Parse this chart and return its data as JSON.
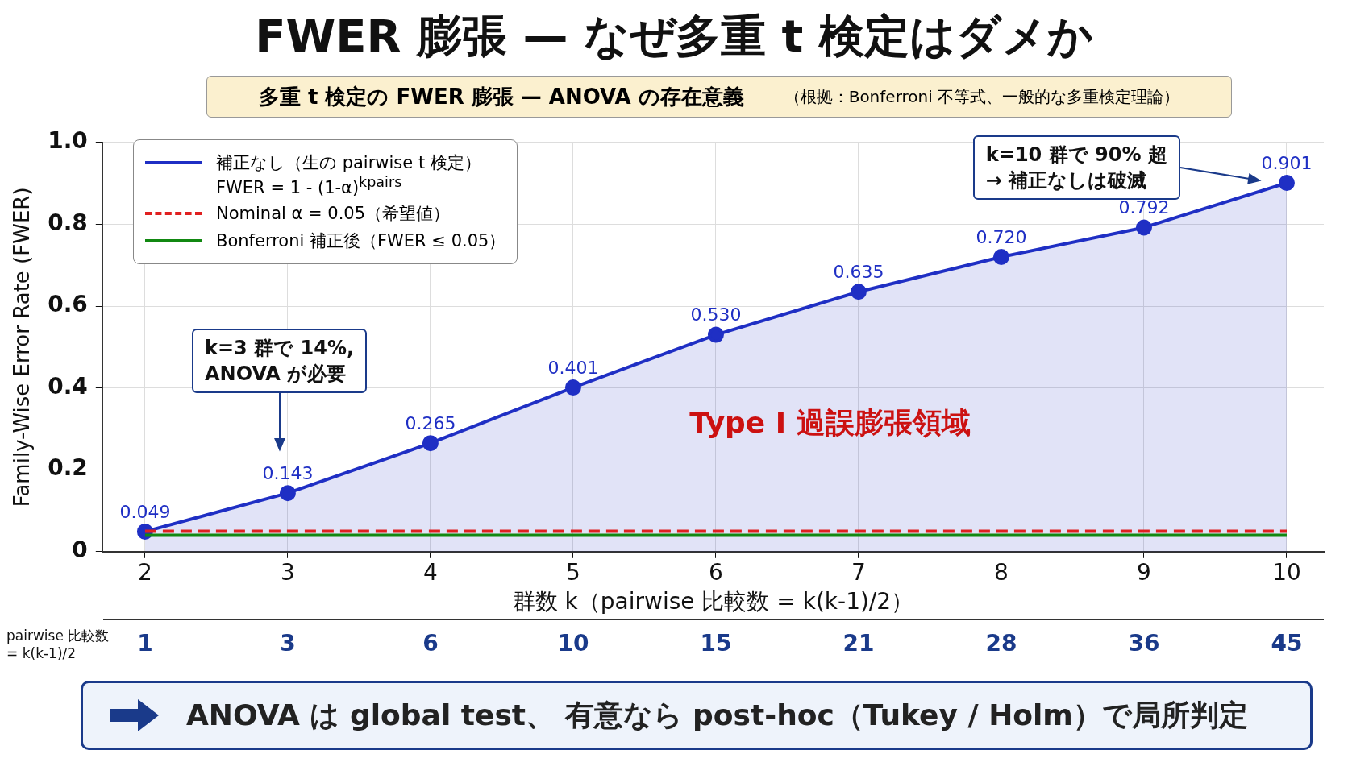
{
  "chart_data": {
    "type": "area",
    "title": "FWER 膨張 — なぜ多重 t 検定はダメか",
    "subtitle": "多重 t 検定の FWER 膨張 — ANOVA の存在意義",
    "xlabel": "群数 k（pairwise 比較数 = k(k-1)/2）",
    "ylabel": "Family-Wise Error Rate (FWER)",
    "x": [
      2,
      3,
      4,
      5,
      6,
      7,
      8,
      9,
      10
    ],
    "xlim": [
      1.7,
      10.26
    ],
    "xticks": [
      2,
      3,
      4,
      5,
      6,
      7,
      8,
      9,
      10
    ],
    "ylim": [
      0,
      1
    ],
    "yticks": [
      0,
      {
        "value": 0.2,
        "label": "0.2"
      },
      {
        "value": 0.4,
        "label": "0.4"
      },
      {
        "value": 0.6,
        "label": "0.6"
      },
      {
        "value": 0.8,
        "label": "0.8"
      },
      {
        "value": 1,
        "label": "1.0"
      }
    ],
    "series": [
      {
        "name": "補正なし（生の pairwise t 検定）\nFWER = 1 - (1-α)$^{kpairs}$",
        "color": "#1f2fc4",
        "marker": "circle",
        "values": [
          0.049,
          0.143,
          0.265,
          0.401,
          0.53,
          0.635,
          0.72,
          0.792,
          0.901
        ],
        "value_labels": [
          "0.049",
          "0.143",
          "0.265",
          "0.401",
          "0.530",
          "0.635",
          "0.720",
          "0.792",
          "0.901"
        ]
      },
      {
        "name": "Nominal α = 0.05（希望値）",
        "type": "line",
        "color": "#e02020",
        "line_style": "dashed",
        "marker": "none",
        "values": [
          0.05,
          0.05,
          0.05,
          0.05,
          0.05,
          0.05,
          0.05,
          0.05,
          0.05
        ]
      },
      {
        "name": "Bonferroni 補正後（FWER ≤ 0.05）",
        "type": "line",
        "color": "#118811",
        "line_style": "solid",
        "marker": "none",
        "values": [
          0.04,
          0.04,
          0.04,
          0.04,
          0.04,
          0.04,
          0.04,
          0.04,
          0.04
        ]
      }
    ],
    "annotations": [
      "（根拠：Bonferroni 不等式、一般的な多重検定理論）",
      "Type I 過誤膨張領域",
      "ANOVA は global test、 有意なら post-hoc（Tukey / Holm）で局所判定",
      "pairwise 比較数\n= k(k-1)/2",
      "1 3 6 10 15 21 28 36 45",
      "k=3 群で 14%,\nANOVA が必要",
      "k=10 群で 90% 超\n→ 補正なしは破滅"
    ],
    "grid": true,
    "legend": "top left"
  }
}
